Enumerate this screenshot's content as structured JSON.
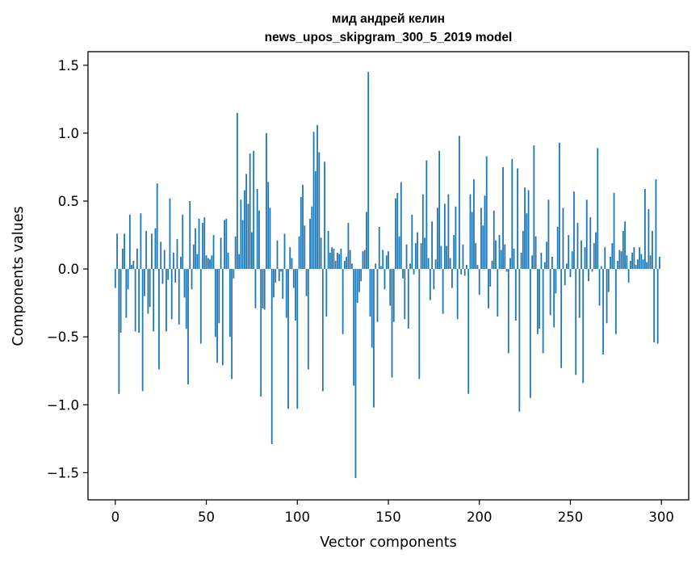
{
  "chart_data": {
    "type": "bar",
    "title": "мид андрей келин",
    "subtitle": "news_upos_skipgram_300_5_2019 model",
    "xlabel": "Vector components",
    "ylabel": "Components values",
    "xlim": [
      -15,
      315
    ],
    "ylim": [
      -1.7,
      1.6
    ],
    "xticks": [
      0,
      50,
      100,
      150,
      200,
      250,
      300
    ],
    "yticks": [
      -1.5,
      -1.0,
      -0.5,
      0.0,
      0.5,
      1.0,
      1.5
    ],
    "ytick_labels": [
      "−1.5",
      "−1.0",
      "−0.5",
      "0.0",
      "0.5",
      "1.0",
      "1.5"
    ],
    "grid": false,
    "bar_color": "#1f77b4",
    "values": [
      -0.14,
      0.26,
      -0.92,
      -0.47,
      0.15,
      0.26,
      -0.36,
      -0.15,
      0.4,
      0.03,
      0.06,
      -0.46,
      0.15,
      -0.47,
      0.41,
      -0.9,
      -0.2,
      0.28,
      -0.33,
      -0.28,
      0.26,
      -0.46,
      0.3,
      0.63,
      -0.74,
      0.2,
      -0.11,
      0.14,
      -0.46,
      -0.08,
      0.52,
      -0.37,
      0.12,
      -0.1,
      0.22,
      -0.41,
      0.09,
      0.4,
      -0.21,
      -0.44,
      -0.85,
      0.5,
      -0.15,
      0.18,
      0.3,
      0.11,
      0.37,
      -0.55,
      0.34,
      0.38,
      0.1,
      0.08,
      0.07,
      0.1,
      0.25,
      -0.5,
      -0.69,
      -0.4,
      0.23,
      -0.71,
      0.36,
      0.37,
      0.12,
      -0.5,
      -0.81,
      -0.07,
      0.24,
      1.15,
      0.11,
      0.51,
      0.36,
      0.58,
      0.7,
      0.48,
      0.85,
      0.27,
      0.87,
      -0.29,
      0.59,
      0.43,
      -0.94,
      -0.29,
      -0.3,
      1.0,
      0.64,
      0.45,
      -1.29,
      -0.21,
      -0.1,
      0.21,
      -0.09,
      -0.02,
      -0.22,
      0.26,
      -0.36,
      -1.03,
      0.16,
      0.08,
      -0.14,
      -0.38,
      -1.03,
      0.24,
      0.53,
      0.62,
      0.32,
      -0.2,
      -0.74,
      0.37,
      0.46,
      1.01,
      0.72,
      1.06,
      0.86,
      0.23,
      -0.9,
      0.79,
      -0.35,
      0.28,
      0.12,
      0.16,
      0.15,
      0.06,
      0.12,
      0.11,
      0.15,
      -0.48,
      0.06,
      0.09,
      0.34,
      0.14,
      0.04,
      -0.86,
      -1.54,
      -0.25,
      -0.17,
      -0.09,
      0.13,
      0.14,
      0.42,
      1.45,
      -0.35,
      -0.58,
      -1.02,
      0.04,
      -0.39,
      0.31,
      0.02,
      0.14,
      -0.15,
      0.1,
      0.13,
      -0.27,
      -0.8,
      -0.39,
      0.52,
      0.56,
      0.24,
      0.64,
      -0.07,
      -0.37,
      0.18,
      -0.44,
      0.04,
      0.4,
      -0.04,
      0.19,
      0.27,
      -0.81,
      0.19,
      0.55,
      0.23,
      0.8,
      0.08,
      -0.23,
      0.35,
      -0.15,
      0.07,
      0.45,
      0.87,
      0.17,
      -0.33,
      0.48,
      0.17,
      0.55,
      0.08,
      -0.14,
      0.25,
      0.46,
      -0.37,
      0.98,
      -0.04,
      0.18,
      -0.05,
      0.03,
      -0.92,
      0.55,
      0.42,
      0.66,
      0.19,
      0.03,
      -0.19,
      0.45,
      0.32,
      0.54,
      0.83,
      -0.29,
      -0.13,
      0.06,
      0.43,
      0.21,
      -0.35,
      0.25,
      0.14,
      0.75,
      0.18,
      -0.02,
      -0.62,
      0.08,
      0.81,
      0.15,
      -0.38,
      0.74,
      -1.05,
      0.12,
      0.28,
      0.6,
      0.41,
      0.58,
      -0.95,
      0.1,
      0.91,
      0.24,
      -0.48,
      -0.44,
      0.12,
      -0.62,
      0.05,
      0.2,
      0.51,
      -0.34,
      0.09,
      -0.43,
      -0.18,
      0.31,
      0.93,
      -0.73,
      0.45,
      -0.12,
      0.04,
      0.25,
      -0.06,
      0.13,
      0.57,
      -0.78,
      0.34,
      -0.36,
      0.21,
      -0.84,
      0.16,
      0.51,
      -0.09,
      0.38,
      -0.02,
      0.19,
      0.27,
      0.89,
      -0.27,
      0.02,
      -0.63,
      0.16,
      -0.4,
      -0.17,
      0.09,
      0.19,
      0.56,
      -0.48,
      0.06,
      0.14,
      0.13,
      0.28,
      0.35,
      0.1,
      -0.1,
      0.06,
      0.12,
      0.16,
      0.03,
      0.07,
      0.16,
      0.11,
      0.07,
      0.59,
      0.05,
      0.44,
      0.1,
      0.28,
      -0.54,
      0.66,
      -0.55,
      0.09
    ]
  }
}
